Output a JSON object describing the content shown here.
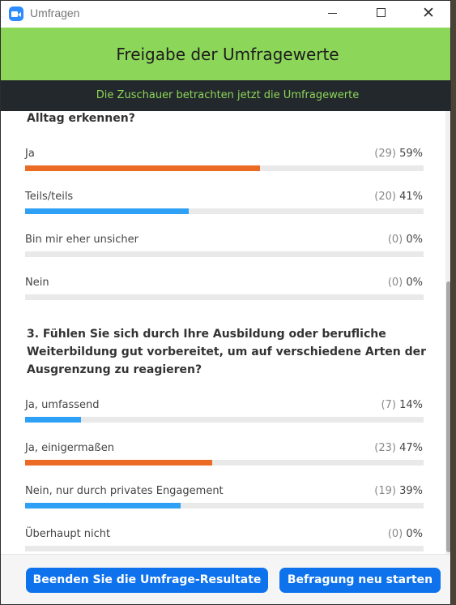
{
  "window": {
    "title": "Umfragen",
    "minimize_icon": "minimize-icon",
    "maximize_icon": "maximize-icon",
    "close_icon": "close-icon",
    "close_glyph": "✕"
  },
  "header": {
    "title": "Freigabe der Umfragewerte",
    "banner": "Die Zuschauer betrachten jetzt die Umfragewerte",
    "background_color": "#8cd65a",
    "banner_background": "#23282c"
  },
  "questions": [
    {
      "title": "Alltag erkennen?",
      "options": [
        {
          "label": "Ja",
          "count": "(29)",
          "percent": "59%",
          "fraction": 0.59,
          "color": "#ec6b24"
        },
        {
          "label": "Teils/teils",
          "count": "(20)",
          "percent": "41%",
          "fraction": 0.41,
          "color": "#2ea0f5"
        },
        {
          "label": "Bin mir eher unsicher",
          "count": "(0)",
          "percent": "0%",
          "fraction": 0,
          "color": "#2ea0f5"
        },
        {
          "label": "Nein",
          "count": "(0)",
          "percent": "0%",
          "fraction": 0,
          "color": "#2ea0f5"
        }
      ]
    },
    {
      "title_lines": [
        "3. Fühlen Sie sich durch Ihre Ausbildung oder berufliche",
        "Weiterbildung gut vorbereitet, um auf verschiedene Arten der",
        "Ausgrenzung zu reagieren?"
      ],
      "options": [
        {
          "label": "Ja, umfassend",
          "count": "(7)",
          "percent": "14%",
          "fraction": 0.14,
          "color": "#2ea0f5"
        },
        {
          "label": "Ja, einigermaßen",
          "count": "(23)",
          "percent": "47%",
          "fraction": 0.47,
          "color": "#ec6b24"
        },
        {
          "label": "Nein, nur durch privates Engagement",
          "count": "(19)",
          "percent": "39%",
          "fraction": 0.39,
          "color": "#2ea0f5"
        },
        {
          "label": "Überhaupt nicht",
          "count": "(0)",
          "percent": "0%",
          "fraction": 0,
          "color": "#2ea0f5"
        }
      ]
    }
  ],
  "footer": {
    "end_button": "Beenden Sie die Umfrage-Resultate",
    "restart_button": "Befragung neu starten",
    "button_color": "#0e72ed"
  }
}
